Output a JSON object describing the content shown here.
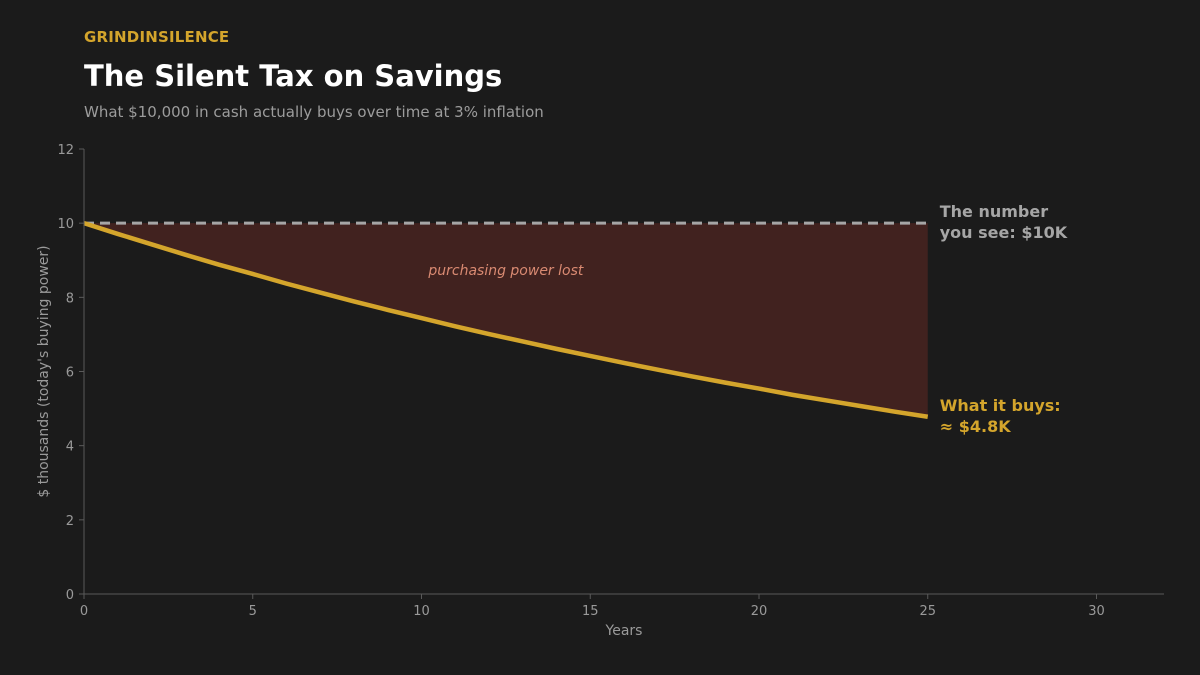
{
  "header": {
    "brand": "GRINDINSILENCE",
    "title": "The Silent Tax on Savings",
    "subtitle": "What $10,000 in cash actually buys over time at 3% inflation"
  },
  "colors": {
    "background": "#1b1b1b",
    "accent": "#d4a52c",
    "baseline": "#a6a6a6",
    "loss_fill": "#41221f",
    "loss_label": "#d98a72",
    "axis": "#5a5a5a",
    "tick_text": "#9a9a9a"
  },
  "chart_data": {
    "type": "line",
    "xlabel": "Years",
    "ylabel": "$ thousands (today's buying power)",
    "xlim": [
      0,
      32
    ],
    "ylim": [
      0,
      12
    ],
    "xticks": [
      0,
      5,
      10,
      15,
      20,
      25,
      30
    ],
    "yticks": [
      0,
      2,
      4,
      6,
      8,
      10,
      12
    ],
    "grid": false,
    "series": [
      {
        "role": "baseline",
        "style": "dashed",
        "x": [
          0,
          25
        ],
        "y": [
          10,
          10
        ]
      },
      {
        "role": "real-value",
        "style": "solid",
        "x": [
          0,
          1,
          2,
          3,
          4,
          5,
          6,
          7,
          8,
          9,
          10,
          11,
          12,
          13,
          14,
          15,
          16,
          17,
          18,
          19,
          20,
          21,
          22,
          23,
          24,
          25
        ],
        "y": [
          10.0,
          9.71,
          9.43,
          9.15,
          8.88,
          8.63,
          8.37,
          8.13,
          7.89,
          7.66,
          7.44,
          7.22,
          7.01,
          6.81,
          6.61,
          6.42,
          6.23,
          6.05,
          5.87,
          5.7,
          5.54,
          5.37,
          5.22,
          5.07,
          4.92,
          4.78
        ]
      }
    ],
    "annotations": {
      "region_label": "purchasing power lost",
      "baseline_label": [
        "The number",
        "you see: $10K"
      ],
      "end_label": [
        "What it buys:",
        "≈ $4.8K"
      ]
    }
  }
}
